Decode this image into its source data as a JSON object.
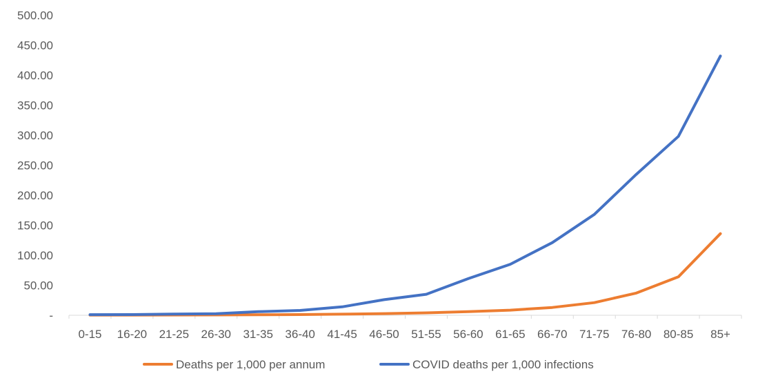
{
  "chart_data": {
    "type": "line",
    "title": "",
    "xlabel": "",
    "ylabel": "",
    "categories": [
      "0-15",
      "16-20",
      "21-25",
      "26-30",
      "31-35",
      "36-40",
      "41-45",
      "46-50",
      "51-55",
      "56-60",
      "61-65",
      "66-70",
      "71-75",
      "76-80",
      "80-85",
      "85+"
    ],
    "ylim": [
      0,
      500
    ],
    "yticks": [
      0,
      50,
      100,
      150,
      200,
      250,
      300,
      350,
      400,
      450,
      500
    ],
    "ytick_labels": [
      "-",
      "50.00",
      "100.00",
      "150.00",
      "200.00",
      "250.00",
      "300.00",
      "350.00",
      "400.00",
      "450.00",
      "500.00"
    ],
    "grid": false,
    "legend_position": "bottom",
    "series": [
      {
        "name": "Deaths per 1,000 per annum",
        "color": "#ED7D31",
        "values": [
          0.2,
          0.3,
          0.5,
          0.6,
          0.8,
          1.2,
          1.8,
          2.8,
          4.0,
          6.0,
          8.5,
          13.0,
          21.0,
          37.0,
          64.0,
          136.0
        ]
      },
      {
        "name": "COVID deaths per 1,000 infections",
        "color": "#4472C4",
        "values": [
          1.0,
          1.2,
          2.0,
          2.5,
          6.0,
          8.0,
          14.0,
          26.0,
          35.0,
          61.0,
          85.0,
          121.0,
          168.0,
          235.0,
          298.0,
          432.0
        ]
      }
    ]
  }
}
